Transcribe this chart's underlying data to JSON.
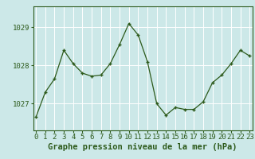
{
  "x": [
    0,
    1,
    2,
    3,
    4,
    5,
    6,
    7,
    8,
    9,
    10,
    11,
    12,
    13,
    14,
    15,
    16,
    17,
    18,
    19,
    20,
    21,
    22,
    23
  ],
  "y": [
    1026.65,
    1027.3,
    1027.65,
    1028.4,
    1028.05,
    1027.8,
    1027.72,
    1027.75,
    1028.05,
    1028.55,
    1029.1,
    1028.8,
    1028.1,
    1027.0,
    1026.7,
    1026.9,
    1026.85,
    1026.85,
    1027.05,
    1027.55,
    1027.75,
    1028.05,
    1028.4,
    1028.25
  ],
  "line_color": "#2d5a1b",
  "marker_color": "#2d5a1b",
  "bg_color": "#cce8e8",
  "grid_color": "#ffffff",
  "ylabel_ticks": [
    1027,
    1028,
    1029
  ],
  "xlabel": "Graphe pression niveau de la mer (hPa)",
  "ylim_min": 1026.3,
  "ylim_max": 1029.55,
  "xlim_min": -0.3,
  "xlim_max": 23.3,
  "xlabel_fontsize": 7.5,
  "tick_fontsize": 6.5,
  "xlabel_color": "#2d5a1b",
  "tick_color": "#2d5a1b",
  "spine_color": "#2d5a1b"
}
